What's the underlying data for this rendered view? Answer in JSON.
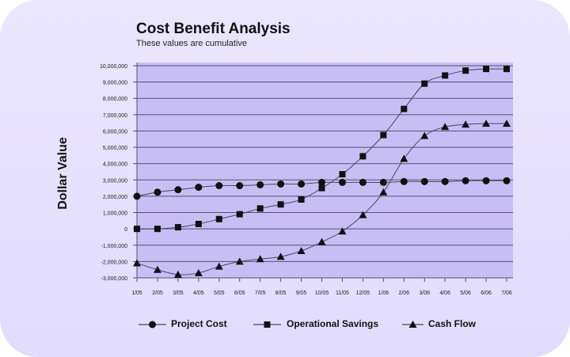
{
  "chart_data": {
    "type": "line",
    "title": "Cost Benefit Analysis",
    "subtitle": "These values are cumulative",
    "xlabel": "",
    "ylabel": "Dollar Value",
    "ylim": [
      -3000000,
      10000000
    ],
    "yticks": [
      10000000,
      9000000,
      8000000,
      7000000,
      6000000,
      5000000,
      4000000,
      3000000,
      2000000,
      1000000,
      0,
      -1000000,
      -2000000,
      -3000000
    ],
    "ytick_labels": [
      "10,000,000",
      "9,000,000",
      "8,000,000",
      "7,000,000",
      "6,000,000",
      "5,000,000",
      "4,000,000",
      "3,000,000",
      "2,000,000",
      "1,000,000",
      "0",
      "-1,000,000",
      "-2,000,000",
      "-3,000,000"
    ],
    "grid": "horizontal",
    "legend": "bottom",
    "categories": [
      "1/05",
      "2/05",
      "3/05",
      "4/05",
      "5/05",
      "6/05",
      "7/05",
      "8/05",
      "9/05",
      "10/05",
      "11/05",
      "12/05",
      "1/06",
      "2/06",
      "3/06",
      "4/06",
      "5/06",
      "6/06",
      "7/06"
    ],
    "series": [
      {
        "name": "Project Cost",
        "marker": "circle",
        "values": [
          2000000,
          2250000,
          2400000,
          2550000,
          2650000,
          2650000,
          2700000,
          2750000,
          2750000,
          2850000,
          2850000,
          2850000,
          2850000,
          2900000,
          2900000,
          2900000,
          2950000,
          2950000,
          2950000
        ]
      },
      {
        "name": "Operational Savings",
        "marker": "square",
        "values": [
          0,
          0,
          100000,
          300000,
          600000,
          900000,
          1250000,
          1500000,
          1800000,
          2500000,
          3350000,
          4450000,
          5750000,
          7350000,
          8900000,
          9400000,
          9700000,
          9800000,
          9800000
        ]
      },
      {
        "name": "Cash Flow",
        "marker": "triangle",
        "values": [
          -2100000,
          -2500000,
          -2800000,
          -2700000,
          -2300000,
          -2000000,
          -1850000,
          -1700000,
          -1350000,
          -800000,
          -150000,
          850000,
          2250000,
          4300000,
          5700000,
          6250000,
          6400000,
          6450000,
          6450000
        ]
      }
    ],
    "colors": {
      "background": "#e4deff",
      "plot_area": "#c8bef5",
      "line": "#4a4466",
      "marker": "#111111"
    }
  }
}
